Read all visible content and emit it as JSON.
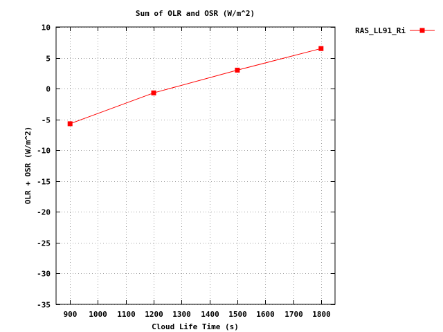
{
  "chart_data": {
    "type": "line",
    "title": "Sum of OLR and OSR (W/m^2)",
    "xlabel": "Cloud Life Time (s)",
    "ylabel": "OLR + OSR (W/m^2)",
    "xlim": [
      850,
      1850
    ],
    "ylim": [
      -35,
      10
    ],
    "xticks": [
      900,
      1000,
      1100,
      1200,
      1300,
      1400,
      1500,
      1600,
      1700,
      1800
    ],
    "yticks": [
      10,
      5,
      0,
      -5,
      -10,
      -15,
      -20,
      -25,
      -30,
      -35
    ],
    "grid": true,
    "legend_position": "outside-top-right",
    "series": [
      {
        "name": "RAS_LL91_Ri",
        "color": "#ff0000",
        "marker": "square",
        "x": [
          900,
          1200,
          1500,
          1800
        ],
        "y": [
          -5.7,
          -0.7,
          3.0,
          6.5
        ]
      }
    ]
  }
}
